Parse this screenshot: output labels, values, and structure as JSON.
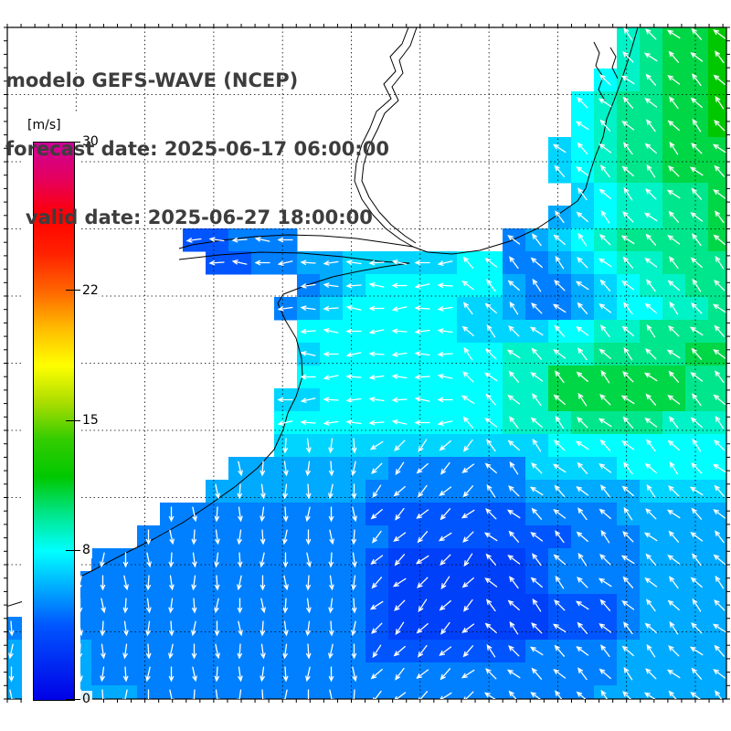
{
  "title": {
    "line1": "modelo GEFS-WAVE (NCEP)",
    "line2": "forecast date: 2025-06-17 06:00:00",
    "line3": "   valid date: 2025-06-27 18:00:00"
  },
  "colorbar": {
    "unit_label": "[m/s]",
    "min": 0,
    "max": 30,
    "tick_values": [
      30,
      22,
      15,
      8,
      0
    ]
  },
  "chart_data": {
    "type": "heatmap",
    "title": "modelo GEFS-WAVE (NCEP)",
    "forecast_date": "2025-06-17 06:00:00",
    "valid_date": "2025-06-27 18:00:00",
    "units": "m/s",
    "scale_min": 0,
    "scale_max": 30,
    "colormap": [
      [
        0,
        "#0000e6"
      ],
      [
        4,
        "#0055ff"
      ],
      [
        6,
        "#00aaff"
      ],
      [
        8,
        "#00ffff"
      ],
      [
        10,
        "#00e68c"
      ],
      [
        12,
        "#00c800"
      ],
      [
        14,
        "#33cc00"
      ],
      [
        16,
        "#aadd00"
      ],
      [
        18,
        "#ffff00"
      ],
      [
        20,
        "#ffbb00"
      ],
      [
        22,
        "#ff6600"
      ],
      [
        24,
        "#ff2200"
      ],
      [
        26,
        "#ff0000"
      ],
      [
        28,
        "#e6005c"
      ],
      [
        30,
        "#cc0099"
      ]
    ],
    "grid_encoding": "32x32 grid of 25px cells, rows top-to-bottom; '.'=land/no data; '0'-'9'=0-9 m/s; 'a'=10,'b'=11,'c'=12 m/s",
    "grid": [
      "................................",
      "...........................9abbc",
      "...........................9abbc",
      "..........................89abbc",
      ".........................89aabbc",
      ".........................89aabbc",
      "........................789aabbb",
      "........................789aabbb",
      ".........................7899aab",
      "........................67899aab",
      "........44555.........56789aaaab",
      ".........44556677777885567899aaa",
      ".............56788888865567899aa",
      "............5678888877655678899a",
      ".............888888877778899aaaa",
      ".............7888888889999aaaabb",
      ".............88888888899bbbbbbaa",
      "............778888888899bbbbbbaa",
      "............8888888888999aaaa999",
      "............77777777777788888888",
      "..........66666665555557777 8888",
      ".........66666665555555666667777",
      ".......5555555554444444555566666",
      "......55555555555444444445556666",
      "....5555555555554333333455556666",
      "...55555555555554333333455556666",
      ".5555555555555554333333344456666",
      "55555555555555554333333344456666",
      "66665555555555554444444555566666",
      "66665555555555555555555555566666",
      "66666655555555555555555555666666",
      "................................"
    ],
    "arrows": {
      "color": "#ffffff",
      "regions": [
        {
          "rows": [
            0,
            31
          ],
          "cols": [
            0,
            31
          ],
          "dir": "up-left"
        },
        {
          "rows": [
            10,
            18
          ],
          "cols": [
            8,
            19
          ],
          "dir": "left"
        },
        {
          "rows": [
            19,
            31
          ],
          "cols": [
            0,
            15
          ],
          "dir": "down"
        },
        {
          "rows": [
            19,
            31
          ],
          "cols": [
            16,
            20
          ],
          "dir": "down-left"
        }
      ]
    }
  }
}
